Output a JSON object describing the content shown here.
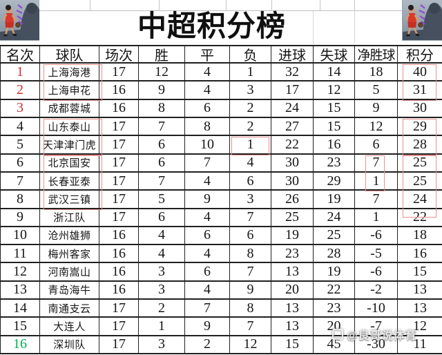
{
  "title": "中超积分榜",
  "watermark": {
    "text": "@良哥说体育"
  },
  "colors": {
    "text": "#161616",
    "rank_top3": "#d92b2b",
    "rank_last": "#00b050",
    "highlight_box": "#ea8f8f"
  },
  "chart_data": {
    "type": "table",
    "title": "中超积分榜",
    "columns": [
      "名次",
      "球队",
      "场次",
      "胜",
      "平",
      "负",
      "进球",
      "失球",
      "净胜球",
      "积分"
    ],
    "rows": [
      {
        "rank": 1,
        "team": "上海海港",
        "played": 17,
        "win": 12,
        "draw": 4,
        "loss": 1,
        "gf": 32,
        "ga": 14,
        "gd": 18,
        "pts": 40
      },
      {
        "rank": 2,
        "team": "上海申花",
        "played": 16,
        "win": 9,
        "draw": 4,
        "loss": 3,
        "gf": 17,
        "ga": 12,
        "gd": 5,
        "pts": 31
      },
      {
        "rank": 3,
        "team": "成都蓉城",
        "played": 16,
        "win": 8,
        "draw": 6,
        "loss": 2,
        "gf": 24,
        "ga": 15,
        "gd": 9,
        "pts": 30
      },
      {
        "rank": 4,
        "team": "山东泰山",
        "played": 17,
        "win": 7,
        "draw": 8,
        "loss": 2,
        "gf": 27,
        "ga": 15,
        "gd": 12,
        "pts": 29
      },
      {
        "rank": 5,
        "team": "天津津门虎",
        "played": 17,
        "win": 6,
        "draw": 10,
        "loss": 1,
        "gf": 22,
        "ga": 16,
        "gd": 6,
        "pts": 28
      },
      {
        "rank": 6,
        "team": "北京国安",
        "played": 17,
        "win": 6,
        "draw": 7,
        "loss": 4,
        "gf": 30,
        "ga": 23,
        "gd": 7,
        "pts": 25
      },
      {
        "rank": 7,
        "team": "长春亚泰",
        "played": 17,
        "win": 7,
        "draw": 4,
        "loss": 6,
        "gf": 30,
        "ga": 29,
        "gd": 1,
        "pts": 25
      },
      {
        "rank": 8,
        "team": "武汉三镇",
        "played": 17,
        "win": 5,
        "draw": 9,
        "loss": 3,
        "gf": 26,
        "ga": 19,
        "gd": 7,
        "pts": 24
      },
      {
        "rank": 9,
        "team": "浙江队",
        "played": 17,
        "win": 6,
        "draw": 4,
        "loss": 7,
        "gf": 25,
        "ga": 24,
        "gd": 1,
        "pts": 22
      },
      {
        "rank": 10,
        "team": "沧州雄狮",
        "played": 16,
        "win": 4,
        "draw": 6,
        "loss": 6,
        "gf": 19,
        "ga": 25,
        "gd": -6,
        "pts": 18
      },
      {
        "rank": 11,
        "team": "梅州客家",
        "played": 16,
        "win": 4,
        "draw": 4,
        "loss": 8,
        "gf": 23,
        "ga": 28,
        "gd": -5,
        "pts": 16
      },
      {
        "rank": 12,
        "team": "河南嵩山",
        "played": 16,
        "win": 3,
        "draw": 6,
        "loss": 7,
        "gf": 13,
        "ga": 19,
        "gd": -6,
        "pts": 15
      },
      {
        "rank": 13,
        "team": "青岛海牛",
        "played": 16,
        "win": 3,
        "draw": 4,
        "loss": 9,
        "gf": 20,
        "ga": 22,
        "gd": -2,
        "pts": 13
      },
      {
        "rank": 14,
        "team": "南通支云",
        "played": 17,
        "win": 2,
        "draw": 7,
        "loss": 8,
        "gf": 13,
        "ga": 23,
        "gd": -10,
        "pts": 13
      },
      {
        "rank": 15,
        "team": "大连人",
        "played": 17,
        "win": 1,
        "draw": 9,
        "loss": 7,
        "gf": 13,
        "ga": 20,
        "gd": -7,
        "pts": 12
      },
      {
        "rank": 16,
        "team": "深圳队",
        "played": 17,
        "win": 3,
        "draw": 2,
        "loss": 12,
        "gf": 15,
        "ga": 45,
        "gd": -30,
        "pts": 11
      }
    ],
    "rank_styles": {
      "red_ranks": [
        1,
        2,
        3
      ],
      "green_ranks": [
        16
      ]
    },
    "legend_position": "none",
    "grid": true
  },
  "annotations": [
    {
      "label": "box-teams-rows-1-2",
      "column": "球队",
      "rows": [
        1,
        2
      ]
    },
    {
      "label": "box-teams-rows-4-5",
      "column": "球队",
      "rows": [
        4,
        5
      ]
    },
    {
      "label": "box-teams-rows-6-8",
      "column": "球队",
      "rows": [
        6,
        7,
        8
      ]
    },
    {
      "label": "box-loss-row-5",
      "column": "负",
      "rows": [
        5
      ]
    },
    {
      "label": "box-points-rows-1-2",
      "column": "积分",
      "rows": [
        1,
        2
      ]
    },
    {
      "label": "box-points-rows-4-5",
      "column": "积分",
      "rows": [
        4,
        5
      ]
    },
    {
      "label": "box-gd-rows-6-7",
      "column": "净胜球",
      "rows": [
        6,
        7
      ]
    },
    {
      "label": "box-points-rows-6-8",
      "column": "积分",
      "rows": [
        6,
        7,
        8
      ],
      "extends_below": true
    }
  ]
}
